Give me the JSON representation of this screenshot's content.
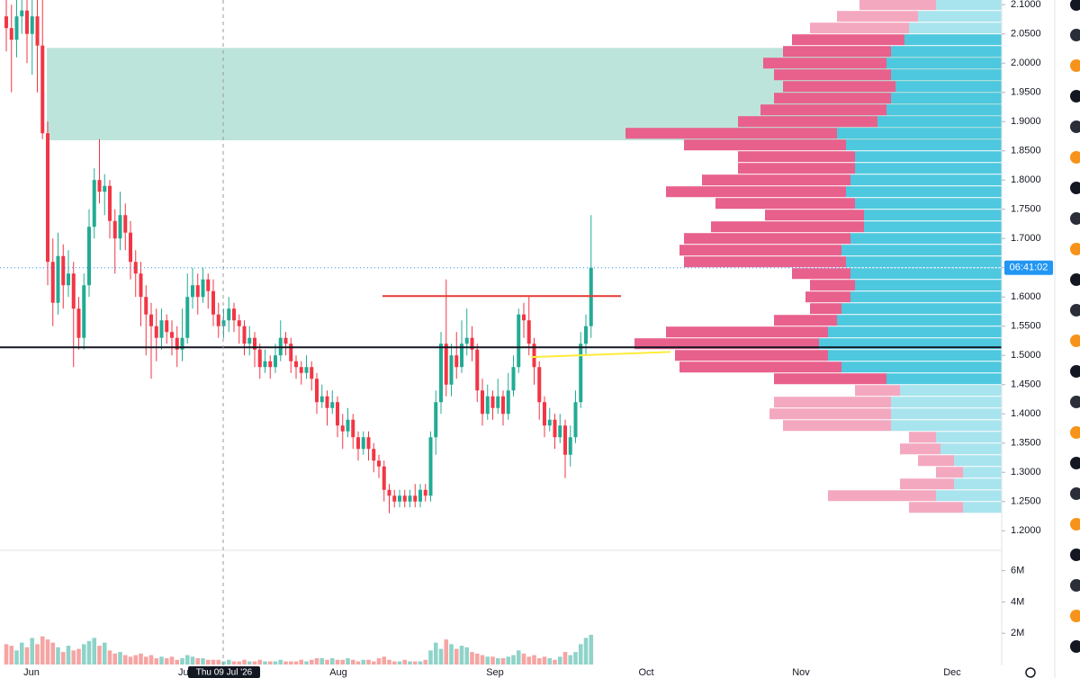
{
  "chart_data": {
    "type": "candlestick",
    "ohlc": [
      [
        2.08,
        2.11,
        2.02,
        2.06
      ],
      [
        2.06,
        2.1,
        1.95,
        2.04
      ],
      [
        2.04,
        2.11,
        2.01,
        2.08
      ],
      [
        2.08,
        2.11,
        2.05,
        2.09
      ],
      [
        2.09,
        2.11,
        2.0,
        2.05
      ],
      [
        2.05,
        2.11,
        1.98,
        2.08
      ],
      [
        2.08,
        2.11,
        1.95,
        2.03
      ],
      [
        2.03,
        2.11,
        1.87,
        1.88
      ],
      [
        1.88,
        1.9,
        1.62,
        1.66
      ],
      [
        1.66,
        1.7,
        1.55,
        1.59
      ],
      [
        1.59,
        1.71,
        1.57,
        1.67
      ],
      [
        1.67,
        1.69,
        1.58,
        1.62
      ],
      [
        1.62,
        1.68,
        1.6,
        1.64
      ],
      [
        1.64,
        1.66,
        1.48,
        1.58
      ],
      [
        1.58,
        1.6,
        1.51,
        1.53
      ],
      [
        1.53,
        1.64,
        1.51,
        1.62
      ],
      [
        1.62,
        1.75,
        1.6,
        1.72
      ],
      [
        1.72,
        1.82,
        1.7,
        1.8
      ],
      [
        1.8,
        1.87,
        1.76,
        1.78
      ],
      [
        1.78,
        1.81,
        1.74,
        1.79
      ],
      [
        1.79,
        1.8,
        1.7,
        1.73
      ],
      [
        1.73,
        1.75,
        1.64,
        1.7
      ],
      [
        1.7,
        1.78,
        1.68,
        1.74
      ],
      [
        1.74,
        1.76,
        1.68,
        1.71
      ],
      [
        1.71,
        1.73,
        1.63,
        1.66
      ],
      [
        1.66,
        1.68,
        1.6,
        1.64
      ],
      [
        1.64,
        1.66,
        1.55,
        1.6
      ],
      [
        1.6,
        1.62,
        1.5,
        1.57
      ],
      [
        1.57,
        1.59,
        1.46,
        1.55
      ],
      [
        1.55,
        1.58,
        1.49,
        1.53
      ],
      [
        1.53,
        1.58,
        1.51,
        1.56
      ],
      [
        1.56,
        1.57,
        1.52,
        1.54
      ],
      [
        1.54,
        1.56,
        1.5,
        1.53
      ],
      [
        1.53,
        1.55,
        1.48,
        1.51
      ],
      [
        1.51,
        1.58,
        1.49,
        1.53
      ],
      [
        1.53,
        1.64,
        1.52,
        1.6
      ],
      [
        1.6,
        1.65,
        1.58,
        1.62
      ],
      [
        1.62,
        1.64,
        1.57,
        1.6
      ],
      [
        1.6,
        1.65,
        1.59,
        1.63
      ],
      [
        1.63,
        1.64,
        1.58,
        1.61
      ],
      [
        1.61,
        1.63,
        1.55,
        1.57
      ],
      [
        1.57,
        1.59,
        1.53,
        1.55
      ],
      [
        1.55,
        1.58,
        1.53,
        1.56
      ],
      [
        1.56,
        1.6,
        1.54,
        1.58
      ],
      [
        1.58,
        1.59,
        1.54,
        1.56
      ],
      [
        1.56,
        1.57,
        1.52,
        1.55
      ],
      [
        1.55,
        1.56,
        1.5,
        1.52
      ],
      [
        1.52,
        1.55,
        1.5,
        1.53
      ],
      [
        1.53,
        1.54,
        1.48,
        1.51
      ],
      [
        1.51,
        1.52,
        1.46,
        1.48
      ],
      [
        1.48,
        1.51,
        1.47,
        1.49
      ],
      [
        1.49,
        1.5,
        1.46,
        1.48
      ],
      [
        1.48,
        1.52,
        1.47,
        1.5
      ],
      [
        1.5,
        1.56,
        1.49,
        1.53
      ],
      [
        1.53,
        1.54,
        1.5,
        1.52
      ],
      [
        1.52,
        1.53,
        1.47,
        1.49
      ],
      [
        1.49,
        1.5,
        1.46,
        1.48
      ],
      [
        1.48,
        1.49,
        1.45,
        1.47
      ],
      [
        1.47,
        1.5,
        1.46,
        1.48
      ],
      [
        1.48,
        1.49,
        1.44,
        1.46
      ],
      [
        1.46,
        1.47,
        1.4,
        1.42
      ],
      [
        1.42,
        1.45,
        1.41,
        1.43
      ],
      [
        1.43,
        1.44,
        1.38,
        1.41
      ],
      [
        1.41,
        1.44,
        1.4,
        1.42
      ],
      [
        1.42,
        1.43,
        1.36,
        1.38
      ],
      [
        1.38,
        1.4,
        1.34,
        1.37
      ],
      [
        1.37,
        1.41,
        1.36,
        1.39
      ],
      [
        1.39,
        1.4,
        1.34,
        1.36
      ],
      [
        1.36,
        1.37,
        1.32,
        1.34
      ],
      [
        1.34,
        1.37,
        1.33,
        1.36
      ],
      [
        1.36,
        1.37,
        1.32,
        1.34
      ],
      [
        1.34,
        1.35,
        1.3,
        1.32
      ],
      [
        1.32,
        1.33,
        1.29,
        1.31
      ],
      [
        1.31,
        1.32,
        1.25,
        1.27
      ],
      [
        1.27,
        1.28,
        1.23,
        1.26
      ],
      [
        1.26,
        1.27,
        1.24,
        1.25
      ],
      [
        1.25,
        1.27,
        1.24,
        1.26
      ],
      [
        1.26,
        1.27,
        1.24,
        1.25
      ],
      [
        1.25,
        1.27,
        1.24,
        1.26
      ],
      [
        1.26,
        1.28,
        1.24,
        1.25
      ],
      [
        1.25,
        1.28,
        1.24,
        1.27
      ],
      [
        1.27,
        1.28,
        1.25,
        1.26
      ],
      [
        1.26,
        1.37,
        1.25,
        1.36
      ],
      [
        1.36,
        1.44,
        1.33,
        1.42
      ],
      [
        1.42,
        1.54,
        1.4,
        1.52
      ],
      [
        1.52,
        1.63,
        1.43,
        1.45
      ],
      [
        1.45,
        1.52,
        1.43,
        1.5
      ],
      [
        1.5,
        1.54,
        1.46,
        1.48
      ],
      [
        1.48,
        1.56,
        1.47,
        1.52
      ],
      [
        1.52,
        1.58,
        1.5,
        1.53
      ],
      [
        1.53,
        1.55,
        1.49,
        1.51
      ],
      [
        1.51,
        1.52,
        1.42,
        1.44
      ],
      [
        1.44,
        1.46,
        1.38,
        1.4
      ],
      [
        1.4,
        1.45,
        1.39,
        1.43
      ],
      [
        1.43,
        1.44,
        1.39,
        1.41
      ],
      [
        1.41,
        1.46,
        1.4,
        1.43
      ],
      [
        1.43,
        1.44,
        1.38,
        1.4
      ],
      [
        1.4,
        1.47,
        1.39,
        1.44
      ],
      [
        1.44,
        1.5,
        1.43,
        1.48
      ],
      [
        1.48,
        1.58,
        1.47,
        1.57
      ],
      [
        1.57,
        1.59,
        1.53,
        1.56
      ],
      [
        1.56,
        1.6,
        1.5,
        1.52
      ],
      [
        1.52,
        1.53,
        1.45,
        1.48
      ],
      [
        1.48,
        1.49,
        1.39,
        1.42
      ],
      [
        1.42,
        1.43,
        1.36,
        1.38
      ],
      [
        1.38,
        1.41,
        1.37,
        1.39
      ],
      [
        1.39,
        1.4,
        1.34,
        1.36
      ],
      [
        1.36,
        1.4,
        1.35,
        1.38
      ],
      [
        1.38,
        1.39,
        1.29,
        1.33
      ],
      [
        1.33,
        1.38,
        1.31,
        1.36
      ],
      [
        1.36,
        1.44,
        1.35,
        1.42
      ],
      [
        1.42,
        1.54,
        1.41,
        1.52
      ],
      [
        1.52,
        1.57,
        1.5,
        1.55
      ],
      [
        1.55,
        1.74,
        1.53,
        1.65
      ]
    ],
    "up_color": "#22ab94",
    "down_color": "#f23645",
    "ylim": [
      1.185,
      2.108
    ],
    "yticks": [
      {
        "value": 2.1,
        "label": "2.1000"
      },
      {
        "value": 2.05,
        "label": "2.0500"
      },
      {
        "value": 2.0,
        "label": "2.0000"
      },
      {
        "value": 1.95,
        "label": "1.9500"
      },
      {
        "value": 1.9,
        "label": "1.9000"
      },
      {
        "value": 1.85,
        "label": "1.8500"
      },
      {
        "value": 1.8,
        "label": "1.8000"
      },
      {
        "value": 1.75,
        "label": "1.7500"
      },
      {
        "value": 1.7,
        "label": "1.7000"
      },
      {
        "value": 1.65,
        "label": "1.6500"
      },
      {
        "value": 1.6,
        "label": "1.6000"
      },
      {
        "value": 1.55,
        "label": "1.5500"
      },
      {
        "value": 1.5,
        "label": "1.5000"
      },
      {
        "value": 1.45,
        "label": "1.4500"
      },
      {
        "value": 1.4,
        "label": "1.4000"
      },
      {
        "value": 1.35,
        "label": "1.3500"
      },
      {
        "value": 1.3,
        "label": "1.3000"
      },
      {
        "value": 1.25,
        "label": "1.2500"
      },
      {
        "value": 1.2,
        "label": "1.2000"
      }
    ],
    "x_labels": [
      "Jun",
      "Jul",
      "Aug",
      "Sep",
      "Oct",
      "Nov",
      "Dec"
    ],
    "crosshair_label": "Thu 09 Jul '26",
    "countdown": "06:41:02",
    "countdown_color": "#2196f3",
    "volume": [
      1.3,
      1.2,
      0.9,
      1.4,
      1.1,
      1.7,
      1.3,
      1.8,
      1.6,
      1.4,
      1.1,
      0.8,
      1.2,
      0.9,
      1.0,
      1.3,
      1.5,
      1.7,
      1.2,
      1.4,
      0.9,
      0.7,
      0.8,
      0.6,
      0.5,
      0.6,
      0.7,
      0.5,
      0.6,
      0.4,
      0.5,
      0.4,
      0.5,
      0.3,
      0.4,
      0.6,
      0.5,
      0.4,
      0.4,
      0.3,
      0.3,
      0.3,
      0.2,
      0.3,
      0.2,
      0.2,
      0.3,
      0.2,
      0.2,
      0.3,
      0.2,
      0.2,
      0.2,
      0.3,
      0.2,
      0.2,
      0.2,
      0.3,
      0.2,
      0.3,
      0.4,
      0.4,
      0.3,
      0.4,
      0.3,
      0.3,
      0.4,
      0.3,
      0.2,
      0.3,
      0.3,
      0.2,
      0.4,
      0.5,
      0.3,
      0.2,
      0.2,
      0.3,
      0.2,
      0.2,
      0.2,
      0.3,
      0.9,
      1.4,
      1.0,
      1.6,
      1.3,
      1.0,
      1.2,
      1.1,
      0.8,
      0.7,
      0.6,
      0.5,
      0.5,
      0.4,
      0.4,
      0.5,
      0.6,
      0.9,
      0.7,
      0.5,
      0.6,
      0.4,
      0.5,
      0.4,
      0.3,
      0.5,
      0.8,
      0.6,
      0.8,
      1.3,
      1.7,
      1.9
    ],
    "volume_up_color": "#8fd3c9",
    "volume_down_color": "#f5a5a3",
    "vlim": [
      0,
      7.3
    ],
    "vticks": [
      {
        "value": 2,
        "label": "2M"
      },
      {
        "value": 4,
        "label": "4M"
      },
      {
        "value": 6,
        "label": "6M"
      }
    ],
    "profile": {
      "prices": [
        1.24,
        1.26,
        1.28,
        1.3,
        1.32,
        1.34,
        1.36,
        1.38,
        1.4,
        1.42,
        1.44,
        1.46,
        1.48,
        1.5,
        1.52,
        1.54,
        1.56,
        1.58,
        1.6,
        1.62,
        1.64,
        1.66,
        1.68,
        1.7,
        1.72,
        1.74,
        1.76,
        1.78,
        1.8,
        1.82,
        1.84,
        1.86,
        1.88,
        1.9,
        1.92,
        1.94,
        1.96,
        1.98,
        2.0,
        2.02,
        2.04,
        2.06,
        2.08,
        2.1
      ],
      "up": [
        43,
        73,
        53,
        43,
        53,
        68,
        73,
        123,
        123,
        123,
        113,
        128,
        178,
        193,
        203,
        193,
        183,
        178,
        168,
        163,
        168,
        173,
        178,
        168,
        153,
        153,
        163,
        173,
        168,
        163,
        163,
        173,
        183,
        138,
        128,
        123,
        118,
        123,
        128,
        123,
        108,
        103,
        93,
        73
      ],
      "down": [
        60,
        120,
        60,
        30,
        40,
        45,
        30,
        120,
        135,
        130,
        50,
        125,
        180,
        170,
        205,
        180,
        70,
        35,
        50,
        50,
        65,
        180,
        180,
        185,
        170,
        110,
        155,
        200,
        165,
        130,
        130,
        180,
        235,
        155,
        140,
        130,
        125,
        130,
        137,
        120,
        125,
        110,
        90,
        85
      ],
      "value_area": [
        1.46,
        2.04
      ],
      "up_color": "#4dc8de",
      "down_color": "#e8608c",
      "up_color_outside": "#a8e4ee",
      "down_color_outside": "#f4a8c0"
    },
    "drawings": [
      {
        "kind": "zone",
        "top": 2.026,
        "bottom": 1.868,
        "color": "#b2dfd5"
      },
      {
        "kind": "line",
        "from": 1.6015,
        "to": 1.6015,
        "color": "#e53935"
      },
      {
        "kind": "line",
        "from": 1.497,
        "to": 1.506,
        "color": "#ffeb3b"
      },
      {
        "kind": "line",
        "from": 1.5138,
        "to": 1.5138,
        "color": "#131722"
      }
    ]
  }
}
